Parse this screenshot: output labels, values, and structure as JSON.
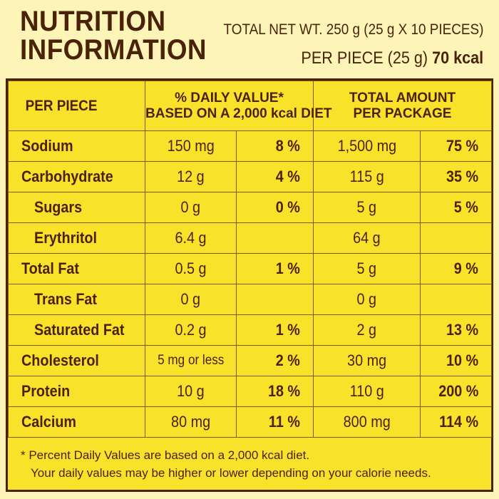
{
  "header": {
    "title_line1": "NUTRITION",
    "title_line2": "INFORMATION",
    "net_weight": "TOTAL NET WT. 250 g (25 g X 10 PIECES)",
    "per_piece_prefix": "PER PIECE (25 g)",
    "per_piece_kcal": "70 kcal"
  },
  "table": {
    "headers": {
      "per_piece": "PER PIECE",
      "daily_value_line1": "% DAILY VALUE*",
      "daily_value_line2": "BASED ON A 2,000 kcal DIET",
      "total_line1": "TOTAL AMOUNT",
      "total_line2": "PER PACKAGE"
    },
    "rows": [
      {
        "name": "Sodium",
        "sub": false,
        "amount": "150 mg",
        "pct": "8 %",
        "total": "1,500 mg",
        "total_pct": "75 %"
      },
      {
        "name": "Carbohydrate",
        "sub": false,
        "amount": "12 g",
        "pct": "4 %",
        "total": "115 g",
        "total_pct": "35 %"
      },
      {
        "name": "Sugars",
        "sub": true,
        "amount": "0 g",
        "pct": "0 %",
        "total": "5 g",
        "total_pct": "5 %"
      },
      {
        "name": "Erythritol",
        "sub": true,
        "amount": "6.4 g",
        "pct": "",
        "total": "64 g",
        "total_pct": ""
      },
      {
        "name": "Total Fat",
        "sub": false,
        "amount": "0.5 g",
        "pct": "1 %",
        "total": "5 g",
        "total_pct": "9 %"
      },
      {
        "name": "Trans Fat",
        "sub": true,
        "amount": "0 g",
        "pct": "",
        "total": "0 g",
        "total_pct": ""
      },
      {
        "name": "Saturated Fat",
        "sub": true,
        "amount": "0.2 g",
        "pct": "1 %",
        "total": "2 g",
        "total_pct": "13 %"
      },
      {
        "name": "Cholesterol",
        "sub": false,
        "amount": "5 mg or less",
        "pct": "2 %",
        "total": "30 mg",
        "total_pct": "10 %"
      },
      {
        "name": "Protein",
        "sub": false,
        "amount": "10 g",
        "pct": "18 %",
        "total": "110 g",
        "total_pct": "200 %"
      },
      {
        "name": "Calcium",
        "sub": false,
        "amount": "80 mg",
        "pct": "11 %",
        "total": "800 mg",
        "total_pct": "114 %"
      }
    ]
  },
  "footnote": {
    "line1": "* Percent Daily Values are based on a 2,000 kcal diet.",
    "line2": "Your daily values may be higher or lower depending on your calorie needs."
  }
}
